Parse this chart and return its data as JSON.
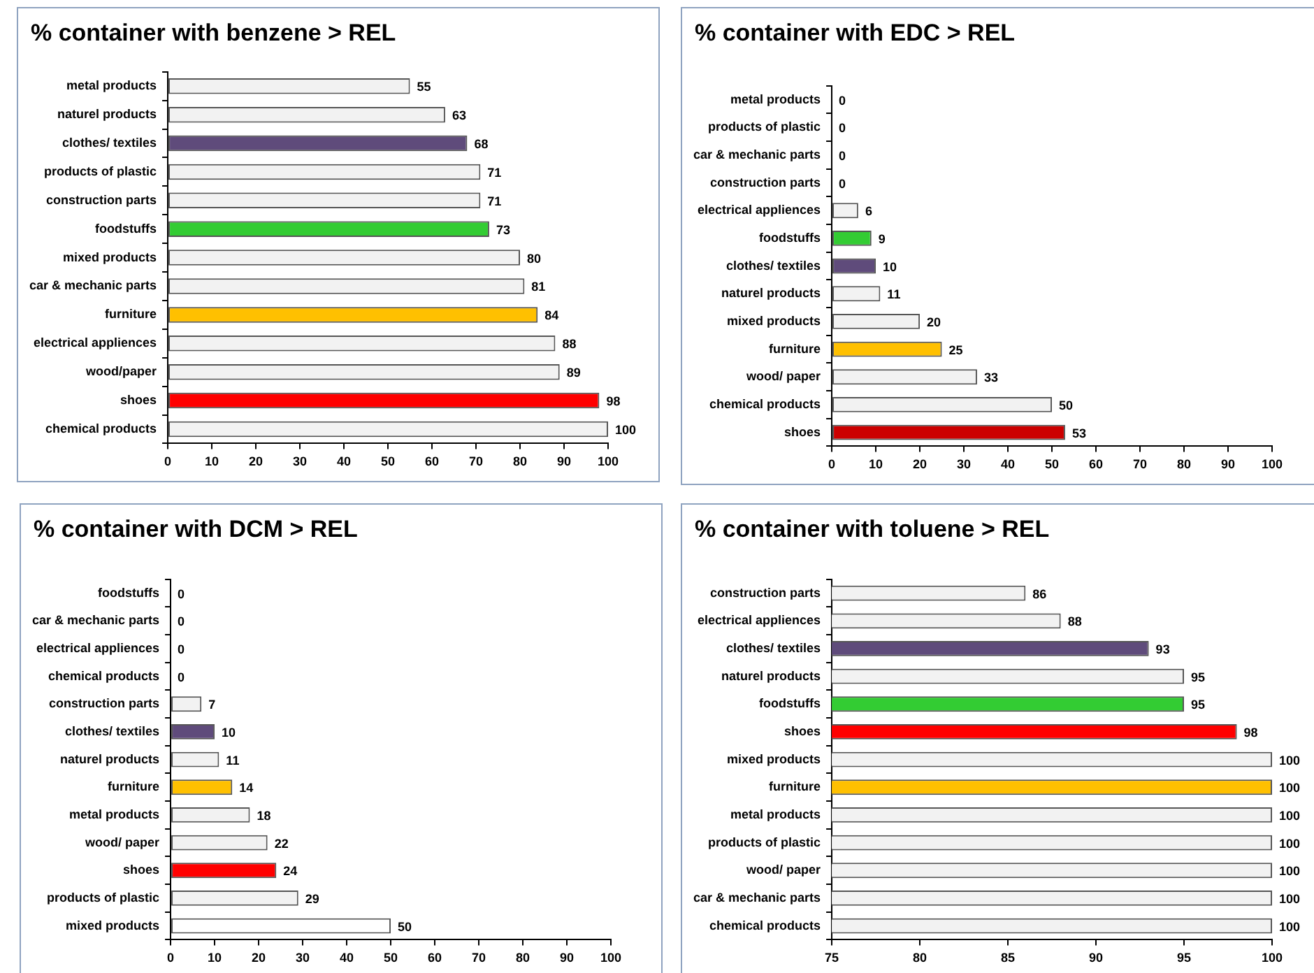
{
  "chart_data": [
    {
      "type": "bar",
      "orientation": "horizontal",
      "title": "% container with benzene > REL",
      "data_labels": true,
      "xlim": [
        0,
        100
      ],
      "xticks": [
        0,
        10,
        20,
        30,
        40,
        50,
        60,
        70,
        80,
        90,
        100
      ],
      "categories": [
        "metal products",
        "naturel products",
        "clothes/ textiles",
        "products of plastic",
        "construction parts",
        "foodstuffs",
        "mixed products",
        "car & mechanic parts",
        "furniture",
        "electrical appliences",
        "wood/paper",
        "shoes",
        "chemical products"
      ],
      "values": [
        55,
        63,
        68,
        71,
        71,
        73,
        80,
        81,
        84,
        88,
        89,
        98,
        100
      ],
      "colors": [
        "#f2f2f2",
        "#f2f2f2",
        "#5f4b7b",
        "#f2f2f2",
        "#f2f2f2",
        "#33cc33",
        "#f2f2f2",
        "#f2f2f2",
        "#ffc000",
        "#f2f2f2",
        "#f2f2f2",
        "#ff0000",
        "#f2f2f2"
      ]
    },
    {
      "type": "bar",
      "orientation": "horizontal",
      "title": "% container with EDC > REL",
      "data_labels": true,
      "xlim": [
        0,
        100
      ],
      "xticks": [
        0,
        10,
        20,
        30,
        40,
        50,
        60,
        70,
        80,
        90,
        100
      ],
      "categories": [
        "metal products",
        "products of plastic",
        "car & mechanic parts",
        "construction parts",
        "electrical appliences",
        "foodstuffs",
        "clothes/ textiles",
        "naturel products",
        "mixed products",
        "furniture",
        "wood/ paper",
        "chemical products",
        "shoes"
      ],
      "values": [
        0,
        0,
        0,
        0,
        6,
        9,
        10,
        11,
        20,
        25,
        33,
        50,
        53
      ],
      "colors": [
        "#f2f2f2",
        "#f2f2f2",
        "#f2f2f2",
        "#f2f2f2",
        "#f2f2f2",
        "#33cc33",
        "#5f4b7b",
        "#f2f2f2",
        "#f2f2f2",
        "#ffc000",
        "#f2f2f2",
        "#f2f2f2",
        "#cc0000"
      ]
    },
    {
      "type": "bar",
      "orientation": "horizontal",
      "title": "% container with DCM > REL",
      "data_labels": true,
      "xlim": [
        0,
        100
      ],
      "xticks": [
        0,
        10,
        20,
        30,
        40,
        50,
        60,
        70,
        80,
        90,
        100
      ],
      "categories": [
        "foodstuffs",
        "car & mechanic parts",
        "electrical appliences",
        "chemical products",
        "construction parts",
        "clothes/ textiles",
        "naturel products",
        "furniture",
        "metal products",
        "wood/ paper",
        "shoes",
        "products of plastic",
        "mixed products"
      ],
      "values": [
        0,
        0,
        0,
        0,
        7,
        10,
        11,
        14,
        18,
        22,
        24,
        29,
        50
      ],
      "colors": [
        "#f2f2f2",
        "#f2f2f2",
        "#f2f2f2",
        "#f2f2f2",
        "#f2f2f2",
        "#5f4b7b",
        "#f2f2f2",
        "#ffc000",
        "#f2f2f2",
        "#f2f2f2",
        "#ff0000",
        "#f2f2f2",
        "#ffffff"
      ]
    },
    {
      "type": "bar",
      "orientation": "horizontal",
      "title": "% container with toluene > REL",
      "data_labels": true,
      "xlim": [
        75,
        100
      ],
      "xticks": [
        75,
        80,
        85,
        90,
        95,
        100
      ],
      "categories": [
        "construction parts",
        "electrical appliences",
        "clothes/ textiles",
        "naturel products",
        "foodstuffs",
        "shoes",
        "mixed products",
        "furniture",
        "metal products",
        "products of plastic",
        "wood/ paper",
        "car & mechanic parts",
        "chemical products"
      ],
      "values": [
        86,
        88,
        93,
        95,
        95,
        98,
        100,
        100,
        100,
        100,
        100,
        100,
        100
      ],
      "colors": [
        "#f2f2f2",
        "#f2f2f2",
        "#5f4b7b",
        "#f2f2f2",
        "#33cc33",
        "#ff0000",
        "#f2f2f2",
        "#ffc000",
        "#f2f2f2",
        "#f2f2f2",
        "#f2f2f2",
        "#f2f2f2",
        "#f2f2f2"
      ]
    }
  ]
}
